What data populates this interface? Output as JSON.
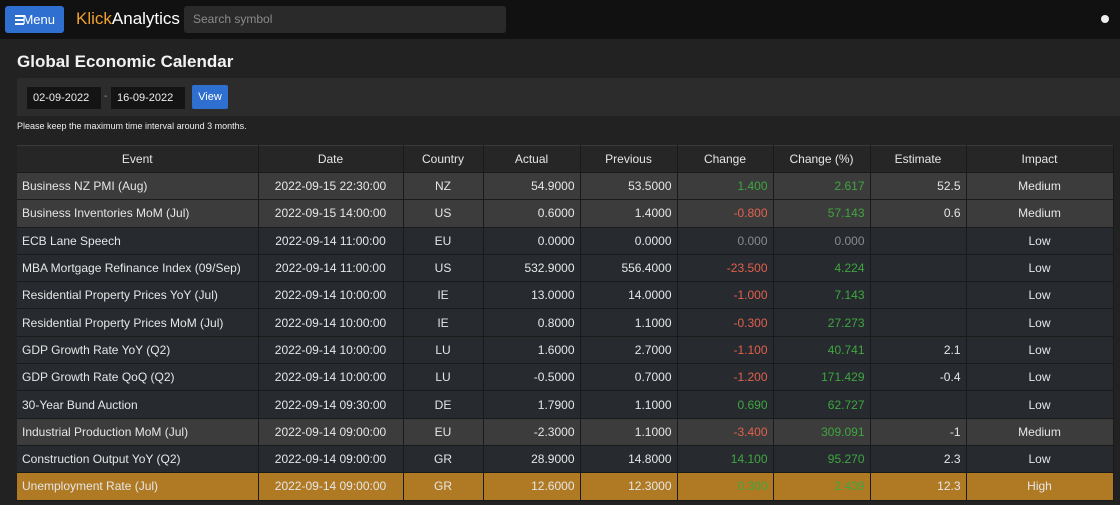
{
  "nav": {
    "menu": "Menu",
    "brand_a": "Klick",
    "brand_b": "Analytics",
    "search_placeholder": "Search symbol"
  },
  "title": "Global Economic Calendar",
  "filter": {
    "from": "02-09-2022",
    "separator": "-",
    "to": "16-09-2022",
    "button": "View"
  },
  "note": "Please keep the maximum time interval around 3 months.",
  "table": {
    "columns": [
      "Event",
      "Date",
      "Country",
      "Actual",
      "Previous",
      "Change",
      "Change (%)",
      "Estimate",
      "Impact"
    ],
    "rows": [
      [
        "Business NZ PMI (Aug)",
        "2022-09-15 22:30:00",
        "NZ",
        "54.9000",
        "53.5000",
        "1.400",
        "2.617",
        "52.5",
        "Medium"
      ],
      [
        "Business Inventories MoM (Jul)",
        "2022-09-15 14:00:00",
        "US",
        "0.6000",
        "1.4000",
        "-0.800",
        "57.143",
        "0.6",
        "Medium"
      ],
      [
        "ECB Lane Speech",
        "2022-09-14 11:00:00",
        "EU",
        "0.0000",
        "0.0000",
        "0.000",
        "0.000",
        null,
        "Low"
      ],
      [
        "MBA Mortgage Refinance Index (09/Sep)",
        "2022-09-14 11:00:00",
        "US",
        "532.9000",
        "556.4000",
        "-23.500",
        "4.224",
        null,
        "Low"
      ],
      [
        "Residential Property Prices YoY (Jul)",
        "2022-09-14 10:00:00",
        "IE",
        "13.0000",
        "14.0000",
        "-1.000",
        "7.143",
        null,
        "Low"
      ],
      [
        "Residential Property Prices MoM (Jul)",
        "2022-09-14 10:00:00",
        "IE",
        "0.8000",
        "1.1000",
        "-0.300",
        "27.273",
        null,
        "Low"
      ],
      [
        "GDP Growth Rate YoY (Q2)",
        "2022-09-14 10:00:00",
        "LU",
        "1.6000",
        "2.7000",
        "-1.100",
        "40.741",
        "2.1",
        "Low"
      ],
      [
        "GDP Growth Rate QoQ (Q2)",
        "2022-09-14 10:00:00",
        "LU",
        "-0.5000",
        "0.7000",
        "-1.200",
        "171.429",
        "-0.4",
        "Low"
      ],
      [
        "30-Year Bund Auction",
        "2022-09-14 09:30:00",
        "DE",
        "1.7900",
        "1.1000",
        "0.690",
        "62.727",
        null,
        "Low"
      ],
      [
        "Industrial Production MoM (Jul)",
        "2022-09-14 09:00:00",
        "EU",
        "-2.3000",
        "1.1000",
        "-3.400",
        "309.091",
        "-1",
        "Medium"
      ],
      [
        "Construction Output YoY (Q2)",
        "2022-09-14 09:00:00",
        "GR",
        "28.9000",
        "14.8000",
        "14.100",
        "95.270",
        "2.3",
        "Low"
      ],
      [
        "Unemployment Rate (Jul)",
        "2022-09-14 09:00:00",
        "GR",
        "12.6000",
        "12.3000",
        "0.300",
        "2.439",
        "12.3",
        "High"
      ]
    ]
  }
}
